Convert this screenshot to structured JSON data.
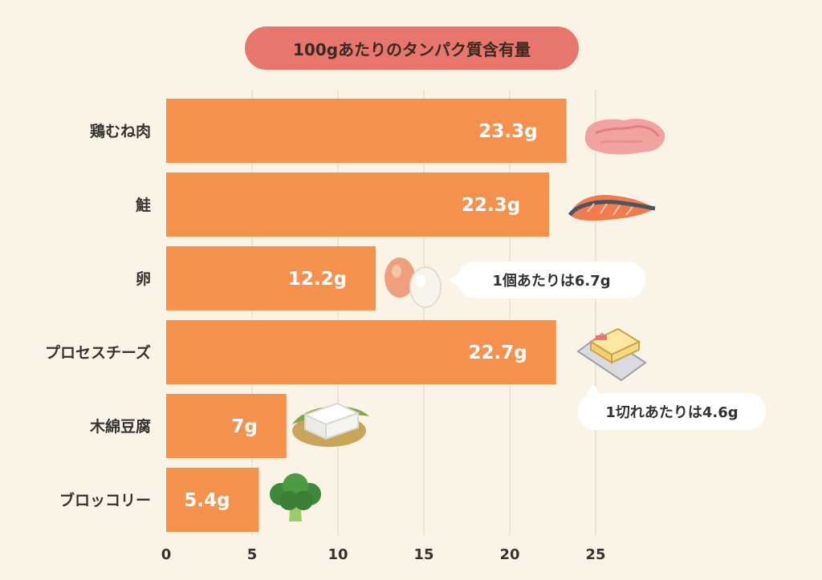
{
  "chart_data": {
    "type": "bar",
    "orientation": "horizontal",
    "title": "100gあたりのタンパク質含有量",
    "categories": [
      "鶏むね肉",
      "鮭",
      "卵",
      "プロセスチーズ",
      "木綿豆腐",
      "ブロッコリー"
    ],
    "values": [
      23.3,
      22.3,
      12.2,
      22.7,
      7,
      5.4
    ],
    "value_labels": [
      "23.3g",
      "22.3g",
      "12.2g",
      "22.7g",
      "7g",
      "5.4g"
    ],
    "xlim": [
      0,
      25
    ],
    "xticks": [
      "0",
      "5",
      "10",
      "15",
      "20",
      "25"
    ],
    "grid": "vertical",
    "bar_color": "#f5914c",
    "annotations": [
      {
        "category": "卵",
        "text": "1個あたりは6.7g"
      },
      {
        "category": "プロセスチーズ",
        "text": "1切れあたりは4.6g"
      }
    ],
    "icons": [
      "chicken-breast-icon",
      "salmon-icon",
      "eggs-icon",
      "cheese-icon",
      "tofu-icon",
      "broccoli-icon"
    ]
  }
}
